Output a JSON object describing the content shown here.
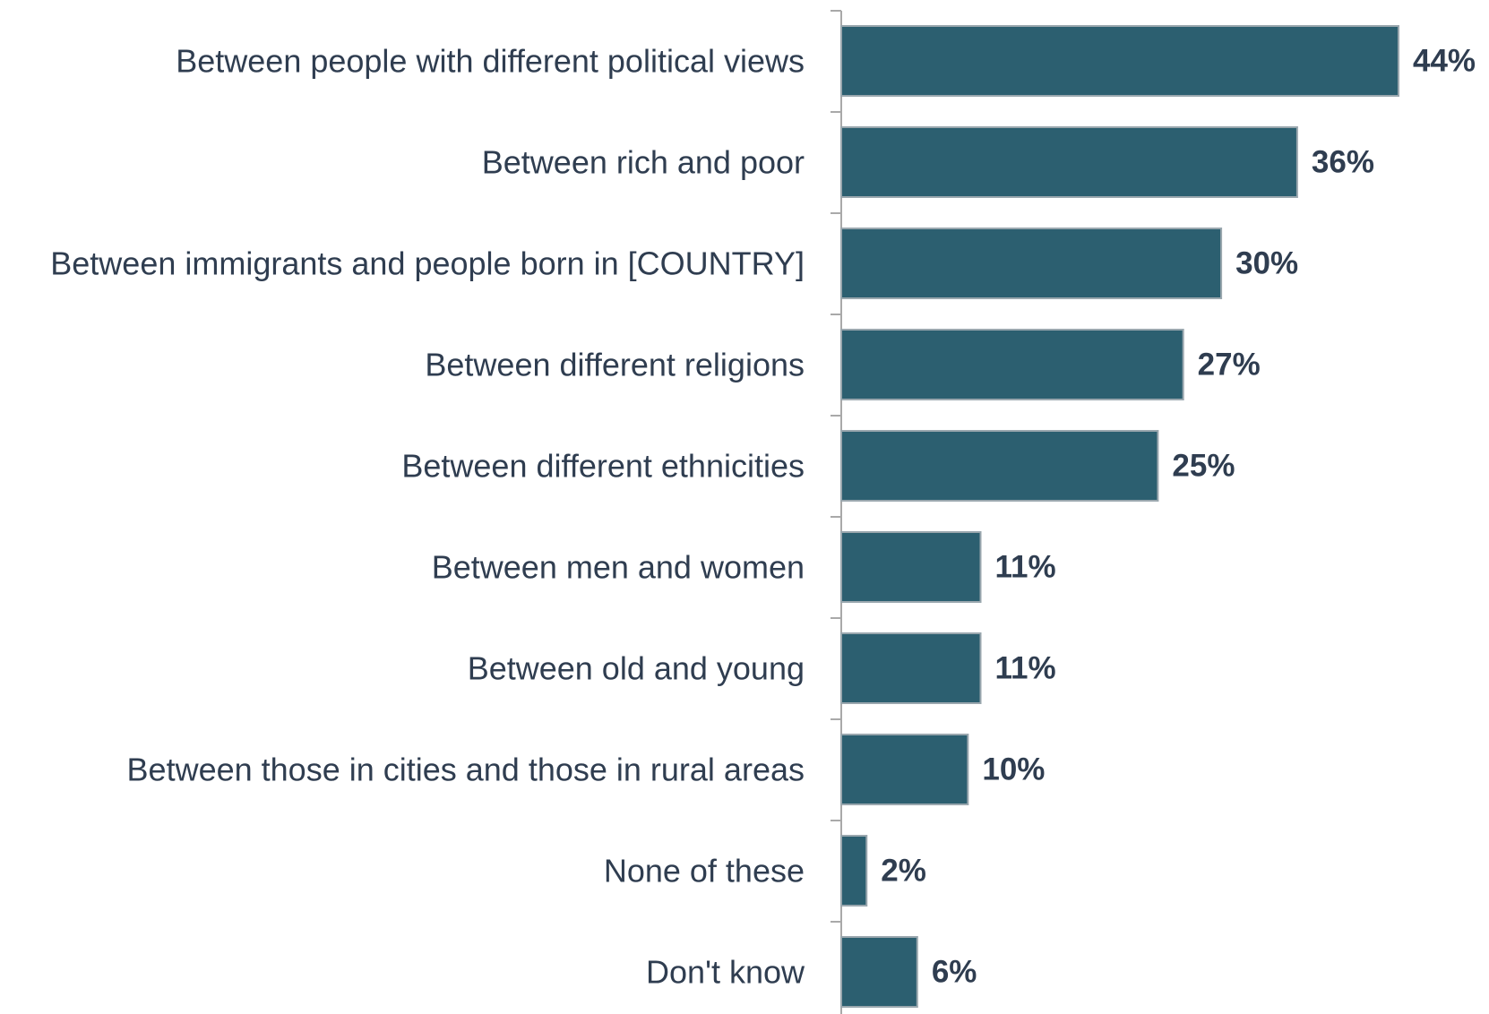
{
  "colors": {
    "bar": "#2c5f70",
    "text": "#2f3d50",
    "axis": "#a9a9a9"
  },
  "chart_data": {
    "type": "bar",
    "orientation": "horizontal",
    "title": "",
    "xlabel": "",
    "ylabel": "",
    "xlim": [
      0,
      44
    ],
    "grid": false,
    "legend": "none",
    "categories": [
      "Between people with different political views",
      "Between rich and poor",
      "Between immigrants and people born in [COUNTRY]",
      "Between different religions",
      "Between different ethnicities",
      "Between men and women",
      "Between old and young",
      "Between those in cities and those in rural areas",
      "None of these",
      "Don't know"
    ],
    "values": [
      44,
      36,
      30,
      27,
      25,
      11,
      11,
      10,
      2,
      6
    ],
    "value_labels": [
      "44%",
      "36%",
      "30%",
      "27%",
      "25%",
      "11%",
      "11%",
      "10%",
      "2%",
      "6%"
    ]
  }
}
